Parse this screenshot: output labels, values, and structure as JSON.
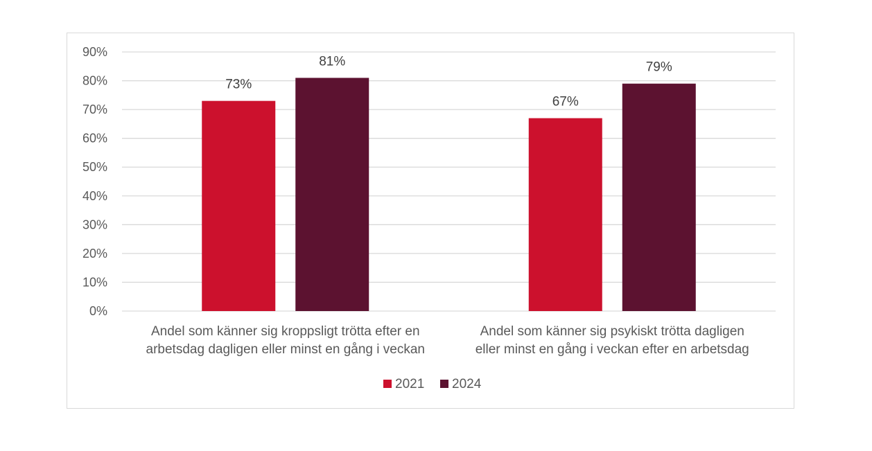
{
  "chart_data": {
    "type": "bar",
    "categories": [
      "Andel som känner sig kroppsligt trötta efter en arbetsdag dagligen eller minst en gång i veckan",
      "Andel som  känner sig psykiskt trötta dagligen eller minst en gång i veckan efter en arbetsdag"
    ],
    "category_lines": [
      [
        "Andel som känner sig kroppsligt trötta efter en",
        "arbetsdag dagligen eller minst en gång i veckan"
      ],
      [
        "Andel som  känner sig psykiskt trötta dagligen",
        "eller minst en gång i veckan efter en arbetsdag"
      ]
    ],
    "series": [
      {
        "name": "2021",
        "values": [
          73,
          67
        ],
        "labels": [
          "73%",
          "67%"
        ],
        "color": "#cc112d"
      },
      {
        "name": "2024",
        "values": [
          81,
          79
        ],
        "labels": [
          "81%",
          "79%"
        ],
        "color": "#5c1230"
      }
    ],
    "y_ticks": [
      {
        "value": 0,
        "label": "0%"
      },
      {
        "value": 10,
        "label": "10%"
      },
      {
        "value": 20,
        "label": "20%"
      },
      {
        "value": 30,
        "label": "30%"
      },
      {
        "value": 40,
        "label": "40%"
      },
      {
        "value": 50,
        "label": "50%"
      },
      {
        "value": 60,
        "label": "60%"
      },
      {
        "value": 70,
        "label": "70%"
      },
      {
        "value": 80,
        "label": "80%"
      },
      {
        "value": 90,
        "label": "90%"
      }
    ],
    "ylim": [
      0,
      90
    ],
    "title": "",
    "xlabel": "",
    "ylabel": "",
    "grid": true,
    "legend_position": "bottom",
    "gridline_color": "#d9d9d9"
  }
}
